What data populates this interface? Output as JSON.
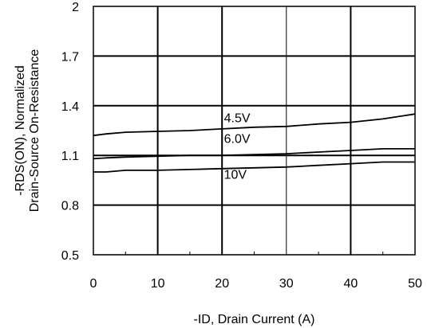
{
  "chart_data": {
    "type": "line",
    "title": "",
    "xlabel": "-ID, Drain Current (A)",
    "ylabel_line1": "-RDS(ON), Normalized",
    "ylabel_line2": "Drain-Source On-Resistance",
    "xlim": [
      0,
      50
    ],
    "ylim": [
      0.5,
      2
    ],
    "x_ticks": [
      0,
      10,
      20,
      30,
      40,
      50
    ],
    "x_tick_labels": [
      "0",
      "10",
      "20",
      "30",
      "40",
      "50"
    ],
    "y_ticks": [
      0.5,
      0.8,
      1.1,
      1.4,
      1.7,
      2
    ],
    "y_tick_labels": [
      "0.5",
      "0.8",
      "1.1",
      "1.4",
      "1.7",
      "2"
    ],
    "grid": true,
    "legend": "none",
    "series": [
      {
        "name": "4.5V",
        "x": [
          0,
          2,
          5,
          10,
          15,
          20,
          25,
          30,
          35,
          40,
          45,
          50
        ],
        "y": [
          1.22,
          1.23,
          1.24,
          1.245,
          1.25,
          1.26,
          1.27,
          1.275,
          1.29,
          1.3,
          1.32,
          1.35
        ]
      },
      {
        "name": "6.0V",
        "x": [
          0,
          2,
          5,
          10,
          15,
          20,
          25,
          30,
          35,
          40,
          45,
          50
        ],
        "y": [
          1.08,
          1.085,
          1.09,
          1.095,
          1.1,
          1.1,
          1.105,
          1.11,
          1.12,
          1.13,
          1.14,
          1.14
        ]
      },
      {
        "name": "10V",
        "x": [
          0,
          2,
          5,
          10,
          15,
          20,
          25,
          30,
          35,
          40,
          45,
          50
        ],
        "y": [
          1.0,
          1.0,
          1.01,
          1.01,
          1.015,
          1.02,
          1.025,
          1.03,
          1.04,
          1.05,
          1.06,
          1.06
        ]
      }
    ],
    "series_label_values": [
      {
        "series": "4.5V",
        "x": 20.3,
        "y": 1.3
      },
      {
        "series": "6.0V",
        "x": 20.3,
        "y": 1.175
      },
      {
        "series": "10V",
        "x": 20.3,
        "y": 0.96
      }
    ]
  }
}
